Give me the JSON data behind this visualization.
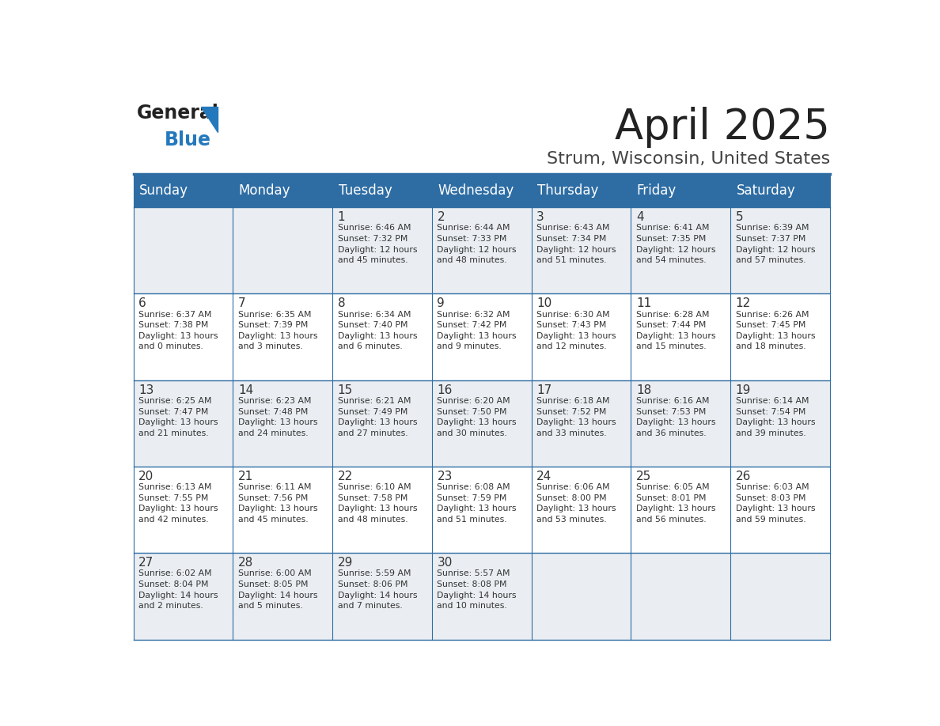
{
  "title": "April 2025",
  "subtitle": "Strum, Wisconsin, United States",
  "header_bg": "#2E6DA4",
  "header_text_color": "#FFFFFF",
  "cell_bg_light": "#EAEEF2",
  "cell_bg_white": "#FFFFFF",
  "border_color": "#2E6DA4",
  "day_number_color": "#333333",
  "cell_text_color": "#333333",
  "days_of_week": [
    "Sunday",
    "Monday",
    "Tuesday",
    "Wednesday",
    "Thursday",
    "Friday",
    "Saturday"
  ],
  "weeks": [
    [
      {
        "day": "",
        "sunrise": "",
        "sunset": "",
        "daylight": ""
      },
      {
        "day": "",
        "sunrise": "",
        "sunset": "",
        "daylight": ""
      },
      {
        "day": "1",
        "sunrise": "Sunrise: 6:46 AM",
        "sunset": "Sunset: 7:32 PM",
        "daylight": "Daylight: 12 hours\nand 45 minutes."
      },
      {
        "day": "2",
        "sunrise": "Sunrise: 6:44 AM",
        "sunset": "Sunset: 7:33 PM",
        "daylight": "Daylight: 12 hours\nand 48 minutes."
      },
      {
        "day": "3",
        "sunrise": "Sunrise: 6:43 AM",
        "sunset": "Sunset: 7:34 PM",
        "daylight": "Daylight: 12 hours\nand 51 minutes."
      },
      {
        "day": "4",
        "sunrise": "Sunrise: 6:41 AM",
        "sunset": "Sunset: 7:35 PM",
        "daylight": "Daylight: 12 hours\nand 54 minutes."
      },
      {
        "day": "5",
        "sunrise": "Sunrise: 6:39 AM",
        "sunset": "Sunset: 7:37 PM",
        "daylight": "Daylight: 12 hours\nand 57 minutes."
      }
    ],
    [
      {
        "day": "6",
        "sunrise": "Sunrise: 6:37 AM",
        "sunset": "Sunset: 7:38 PM",
        "daylight": "Daylight: 13 hours\nand 0 minutes."
      },
      {
        "day": "7",
        "sunrise": "Sunrise: 6:35 AM",
        "sunset": "Sunset: 7:39 PM",
        "daylight": "Daylight: 13 hours\nand 3 minutes."
      },
      {
        "day": "8",
        "sunrise": "Sunrise: 6:34 AM",
        "sunset": "Sunset: 7:40 PM",
        "daylight": "Daylight: 13 hours\nand 6 minutes."
      },
      {
        "day": "9",
        "sunrise": "Sunrise: 6:32 AM",
        "sunset": "Sunset: 7:42 PM",
        "daylight": "Daylight: 13 hours\nand 9 minutes."
      },
      {
        "day": "10",
        "sunrise": "Sunrise: 6:30 AM",
        "sunset": "Sunset: 7:43 PM",
        "daylight": "Daylight: 13 hours\nand 12 minutes."
      },
      {
        "day": "11",
        "sunrise": "Sunrise: 6:28 AM",
        "sunset": "Sunset: 7:44 PM",
        "daylight": "Daylight: 13 hours\nand 15 minutes."
      },
      {
        "day": "12",
        "sunrise": "Sunrise: 6:26 AM",
        "sunset": "Sunset: 7:45 PM",
        "daylight": "Daylight: 13 hours\nand 18 minutes."
      }
    ],
    [
      {
        "day": "13",
        "sunrise": "Sunrise: 6:25 AM",
        "sunset": "Sunset: 7:47 PM",
        "daylight": "Daylight: 13 hours\nand 21 minutes."
      },
      {
        "day": "14",
        "sunrise": "Sunrise: 6:23 AM",
        "sunset": "Sunset: 7:48 PM",
        "daylight": "Daylight: 13 hours\nand 24 minutes."
      },
      {
        "day": "15",
        "sunrise": "Sunrise: 6:21 AM",
        "sunset": "Sunset: 7:49 PM",
        "daylight": "Daylight: 13 hours\nand 27 minutes."
      },
      {
        "day": "16",
        "sunrise": "Sunrise: 6:20 AM",
        "sunset": "Sunset: 7:50 PM",
        "daylight": "Daylight: 13 hours\nand 30 minutes."
      },
      {
        "day": "17",
        "sunrise": "Sunrise: 6:18 AM",
        "sunset": "Sunset: 7:52 PM",
        "daylight": "Daylight: 13 hours\nand 33 minutes."
      },
      {
        "day": "18",
        "sunrise": "Sunrise: 6:16 AM",
        "sunset": "Sunset: 7:53 PM",
        "daylight": "Daylight: 13 hours\nand 36 minutes."
      },
      {
        "day": "19",
        "sunrise": "Sunrise: 6:14 AM",
        "sunset": "Sunset: 7:54 PM",
        "daylight": "Daylight: 13 hours\nand 39 minutes."
      }
    ],
    [
      {
        "day": "20",
        "sunrise": "Sunrise: 6:13 AM",
        "sunset": "Sunset: 7:55 PM",
        "daylight": "Daylight: 13 hours\nand 42 minutes."
      },
      {
        "day": "21",
        "sunrise": "Sunrise: 6:11 AM",
        "sunset": "Sunset: 7:56 PM",
        "daylight": "Daylight: 13 hours\nand 45 minutes."
      },
      {
        "day": "22",
        "sunrise": "Sunrise: 6:10 AM",
        "sunset": "Sunset: 7:58 PM",
        "daylight": "Daylight: 13 hours\nand 48 minutes."
      },
      {
        "day": "23",
        "sunrise": "Sunrise: 6:08 AM",
        "sunset": "Sunset: 7:59 PM",
        "daylight": "Daylight: 13 hours\nand 51 minutes."
      },
      {
        "day": "24",
        "sunrise": "Sunrise: 6:06 AM",
        "sunset": "Sunset: 8:00 PM",
        "daylight": "Daylight: 13 hours\nand 53 minutes."
      },
      {
        "day": "25",
        "sunrise": "Sunrise: 6:05 AM",
        "sunset": "Sunset: 8:01 PM",
        "daylight": "Daylight: 13 hours\nand 56 minutes."
      },
      {
        "day": "26",
        "sunrise": "Sunrise: 6:03 AM",
        "sunset": "Sunset: 8:03 PM",
        "daylight": "Daylight: 13 hours\nand 59 minutes."
      }
    ],
    [
      {
        "day": "27",
        "sunrise": "Sunrise: 6:02 AM",
        "sunset": "Sunset: 8:04 PM",
        "daylight": "Daylight: 14 hours\nand 2 minutes."
      },
      {
        "day": "28",
        "sunrise": "Sunrise: 6:00 AM",
        "sunset": "Sunset: 8:05 PM",
        "daylight": "Daylight: 14 hours\nand 5 minutes."
      },
      {
        "day": "29",
        "sunrise": "Sunrise: 5:59 AM",
        "sunset": "Sunset: 8:06 PM",
        "daylight": "Daylight: 14 hours\nand 7 minutes."
      },
      {
        "day": "30",
        "sunrise": "Sunrise: 5:57 AM",
        "sunset": "Sunset: 8:08 PM",
        "daylight": "Daylight: 14 hours\nand 10 minutes."
      },
      {
        "day": "",
        "sunrise": "",
        "sunset": "",
        "daylight": ""
      },
      {
        "day": "",
        "sunrise": "",
        "sunset": "",
        "daylight": ""
      },
      {
        "day": "",
        "sunrise": "",
        "sunset": "",
        "daylight": ""
      }
    ]
  ],
  "logo_text1": "General",
  "logo_text2": "Blue",
  "logo_color1": "#222222",
  "logo_color2": "#2479BD",
  "title_color": "#222222",
  "subtitle_color": "#444444"
}
